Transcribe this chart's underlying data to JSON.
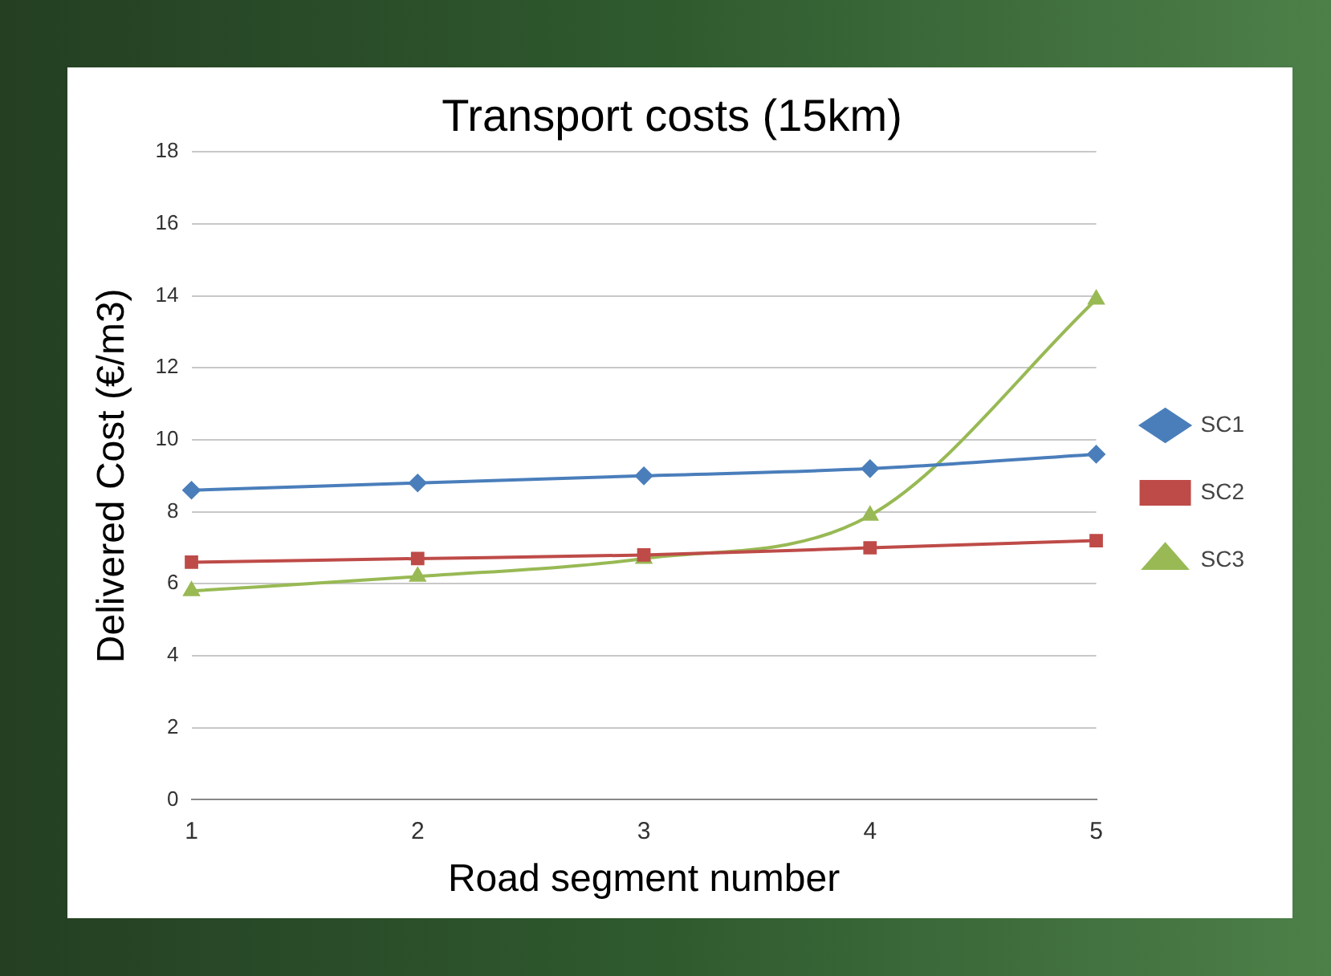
{
  "chart_data": {
    "type": "line",
    "title": "Transport costs (15km)",
    "xlabel": "Road segment number",
    "ylabel": "Delivered Cost (€/m3)",
    "categories": [
      "1",
      "2",
      "3",
      "4",
      "5"
    ],
    "series": [
      {
        "name": "SC1",
        "color": "#4a7ebb",
        "marker": "diamond",
        "values": [
          8.6,
          8.8,
          9.0,
          9.2,
          9.6
        ]
      },
      {
        "name": "SC2",
        "color": "#be4b48",
        "marker": "square",
        "values": [
          6.6,
          6.7,
          6.8,
          7.0,
          7.2
        ]
      },
      {
        "name": "SC3",
        "color": "#98b954",
        "marker": "triangle",
        "values": [
          5.8,
          6.2,
          6.7,
          7.9,
          13.9
        ]
      }
    ],
    "ylim": [
      0,
      18
    ],
    "yticks": [
      0,
      2,
      4,
      6,
      8,
      10,
      12,
      14,
      16,
      18
    ],
    "grid": "y",
    "legend": "right"
  }
}
